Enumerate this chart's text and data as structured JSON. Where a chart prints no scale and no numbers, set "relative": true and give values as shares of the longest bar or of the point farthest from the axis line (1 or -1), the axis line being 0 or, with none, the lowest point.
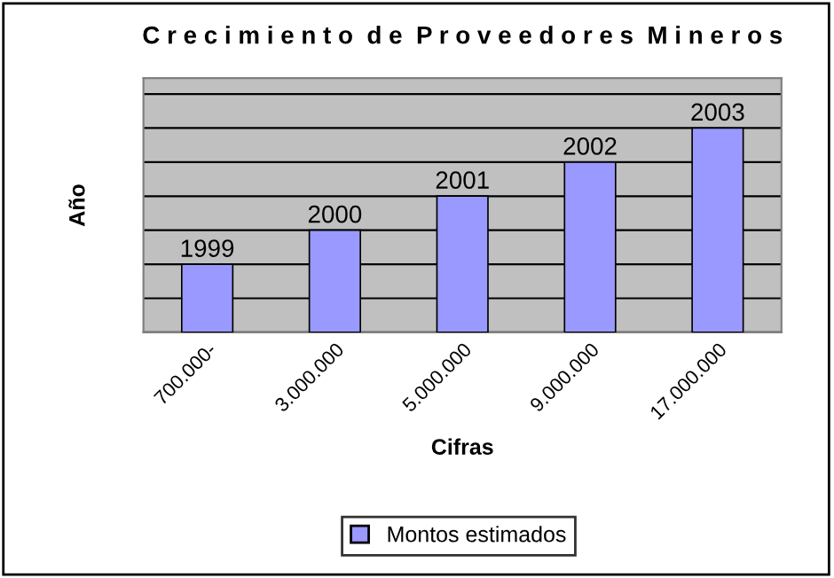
{
  "chart_data": {
    "type": "bar",
    "title": "C r e c i m i e n t o  d e  P r o v e e d o r e s  M i n e r o s",
    "xlabel": "Cifras",
    "ylabel": "Año",
    "categories": [
      "700.000-",
      "3.000.000",
      "5.000.000",
      "9.000.000",
      "17.000.000"
    ],
    "series": [
      {
        "name": "Montos estimados",
        "color": "#9999ff",
        "values": [
          0.333,
          0.5,
          0.667,
          0.833,
          1
        ]
      }
    ],
    "value_labels": [
      "1999",
      "2000",
      "2001",
      "2002",
      "2003"
    ],
    "relative": true,
    "grid": "y",
    "legend": "bottom"
  }
}
